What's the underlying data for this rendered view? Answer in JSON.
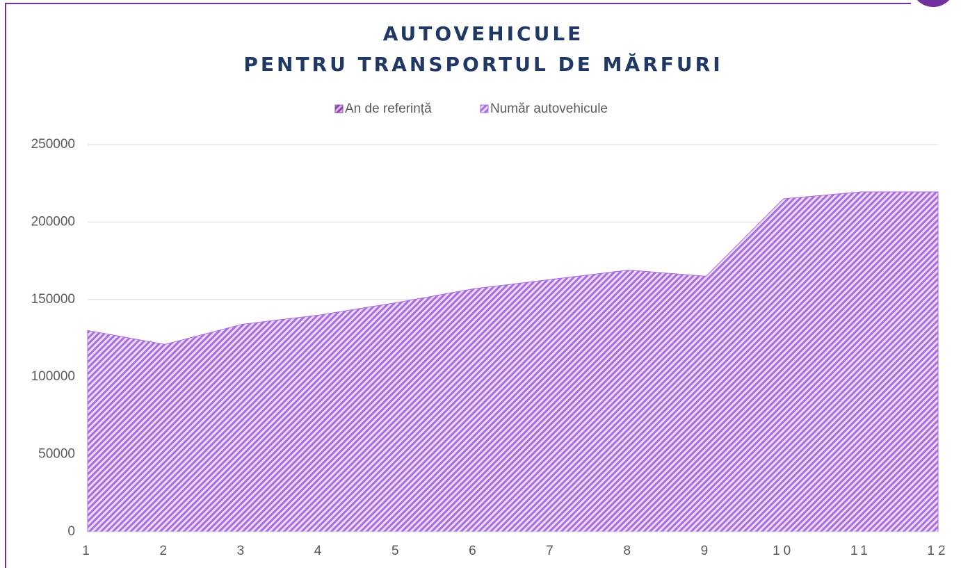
{
  "chart_data": {
    "type": "area",
    "title": [
      "AUTOVEHICULE",
      "PENTRU TRANSPORTUL DE MĂRFURI"
    ],
    "x": [
      1,
      2,
      3,
      4,
      5,
      6,
      7,
      8,
      9,
      10,
      11,
      12
    ],
    "xlim": [
      1,
      12
    ],
    "xticks": [
      1,
      2,
      3,
      4,
      5,
      6,
      7,
      8,
      9,
      10,
      11,
      12
    ],
    "series": [
      {
        "name": "An de referință",
        "color": "#8e44ad",
        "values": [
          null,
          null,
          null,
          null,
          null,
          null,
          null,
          null,
          null,
          null,
          null,
          null
        ]
      },
      {
        "name": "Număr autovehicule",
        "color": "#a86be0",
        "values": [
          130000,
          121000,
          134000,
          140000,
          148000,
          157000,
          163000,
          169000,
          165000,
          215000,
          219500,
          219500
        ]
      }
    ],
    "ylim": [
      0,
      250000
    ],
    "yticks": [
      0,
      50000,
      100000,
      150000,
      200000,
      250000
    ],
    "grid": true,
    "legend": "top"
  }
}
